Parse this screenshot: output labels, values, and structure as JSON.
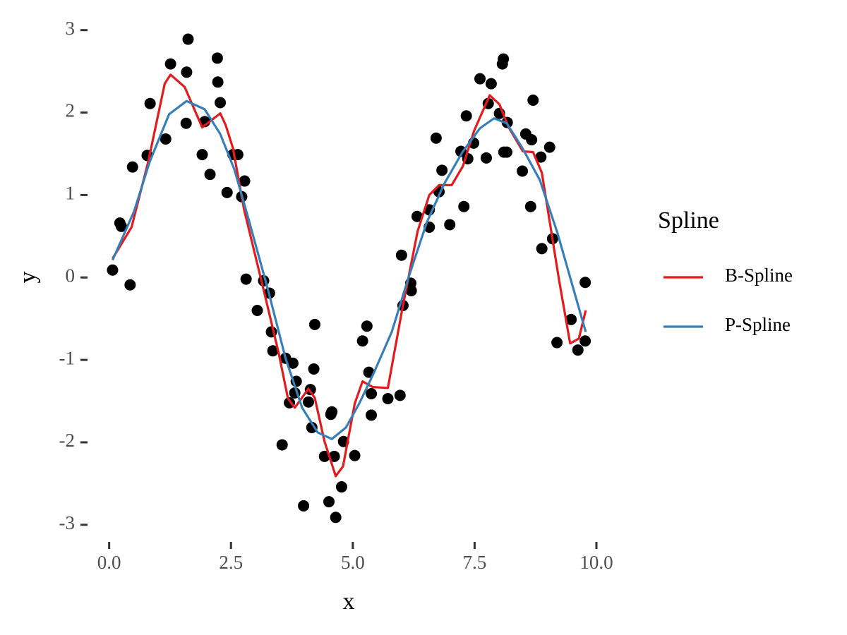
{
  "chart_data": {
    "type": "scatter",
    "x_label": "x",
    "y_label": "y",
    "xlim": [
      -0.415,
      10.255
    ],
    "ylim": [
      -3.19,
      3.16
    ],
    "xticks": [
      {
        "value": 0,
        "label": "0.0"
      },
      2.5,
      {
        "value": 5,
        "label": "5.0"
      },
      7.5,
      {
        "value": 10,
        "label": "10.0"
      }
    ],
    "yticks": [
      -3,
      -2,
      -1,
      0,
      1,
      2,
      3
    ],
    "grid": false,
    "legend_title": "Spline",
    "legend_position": "right",
    "points": {
      "color": "#000000",
      "x": [
        0.07,
        0.22,
        0.25,
        0.43,
        0.48,
        0.78,
        0.84,
        1.16,
        1.26,
        1.58,
        1.59,
        1.62,
        1.91,
        1.96,
        2.07,
        2.22,
        2.23,
        2.28,
        2.42,
        2.54,
        2.64,
        2.72,
        2.78,
        2.81,
        3.04,
        3.17,
        3.29,
        3.33,
        3.36,
        3.55,
        3.62,
        3.7,
        3.77,
        3.81,
        3.84,
        3.99,
        4.09,
        4.13,
        4.16,
        4.2,
        4.22,
        4.42,
        4.51,
        4.55,
        4.57,
        4.62,
        4.65,
        4.77,
        4.81,
        5.04,
        5.2,
        5.29,
        5.33,
        5.38,
        5.38,
        5.72,
        5.97,
        6.03,
        6.0,
        6.19,
        6.2,
        6.32,
        6.57,
        6.57,
        6.71,
        6.77,
        6.83,
        6.99,
        7.22,
        7.28,
        7.33,
        7.36,
        7.48,
        7.61,
        7.74,
        7.78,
        7.84,
        8.01,
        8.07,
        8.09,
        8.1,
        8.16,
        8.17,
        8.48,
        8.55,
        8.65,
        8.67,
        8.7,
        8.86,
        8.88,
        9.04,
        9.1,
        9.19,
        9.48,
        9.62,
        9.77,
        9.77
      ],
      "values": [
        0.09,
        0.66,
        0.62,
        -0.09,
        1.34,
        1.48,
        2.11,
        1.68,
        2.59,
        1.87,
        2.49,
        2.89,
        1.49,
        1.89,
        1.25,
        2.66,
        2.37,
        2.12,
        1.03,
        1.49,
        1.49,
        0.98,
        1.17,
        -0.02,
        -0.4,
        -0.04,
        -0.19,
        -0.66,
        -0.89,
        -2.03,
        -0.98,
        -1.52,
        -1.04,
        -1.4,
        -1.26,
        -2.77,
        -1.51,
        -1.36,
        -1.82,
        -1.11,
        -0.57,
        -2.17,
        -2.72,
        -1.66,
        -1.63,
        -2.17,
        -2.91,
        -2.54,
        -1.99,
        -2.16,
        -0.77,
        -0.59,
        -1.15,
        -1.41,
        -1.67,
        -1.47,
        -1.43,
        -0.34,
        0.27,
        -0.07,
        -0.16,
        0.74,
        0.82,
        0.61,
        1.69,
        1.04,
        1.3,
        0.64,
        1.53,
        0.86,
        1.96,
        1.44,
        1.63,
        2.41,
        1.45,
        2.11,
        2.35,
        1.99,
        2.59,
        2.65,
        1.52,
        1.52,
        1.88,
        1.29,
        1.74,
        0.86,
        1.67,
        2.15,
        1.46,
        0.35,
        1.58,
        0.47,
        -0.79,
        -0.51,
        -0.88,
        -0.06,
        -0.77
      ]
    },
    "series": [
      {
        "name": "B-Spline",
        "color": "#e41a1c",
        "x": [
          0.07,
          0.46,
          0.8,
          1.14,
          1.26,
          1.55,
          1.91,
          2.06,
          2.28,
          2.39,
          2.54,
          2.77,
          3.17,
          3.48,
          3.67,
          3.81,
          4.09,
          4.22,
          4.42,
          4.65,
          4.8,
          5.04,
          5.2,
          5.41,
          5.72,
          6.01,
          6.33,
          6.57,
          6.77,
          7.03,
          7.26,
          7.49,
          7.81,
          8.01,
          8.2,
          8.49,
          8.7,
          8.88,
          9.23,
          9.46,
          9.64,
          9.78
        ],
        "values": [
          0.23,
          0.61,
          1.4,
          2.35,
          2.46,
          2.31,
          1.82,
          1.89,
          1.99,
          1.85,
          1.57,
          0.82,
          -0.15,
          -0.92,
          -1.47,
          -1.58,
          -1.35,
          -1.46,
          -1.99,
          -2.41,
          -2.29,
          -1.53,
          -1.26,
          -1.33,
          -1.34,
          -0.4,
          0.56,
          1.0,
          1.12,
          1.12,
          1.35,
          1.78,
          2.21,
          2.1,
          1.82,
          1.53,
          1.52,
          1.27,
          -0.02,
          -0.8,
          -0.74,
          -0.4
        ]
      },
      {
        "name": "P-Spline",
        "color": "#377eb8",
        "x": [
          0.07,
          0.51,
          0.83,
          1.23,
          1.59,
          1.96,
          2.28,
          2.57,
          2.86,
          3.26,
          3.62,
          3.96,
          4.28,
          4.57,
          4.86,
          5.14,
          5.43,
          5.8,
          6.16,
          6.52,
          6.88,
          7.25,
          7.61,
          7.9,
          8.16,
          8.48,
          8.84,
          9.2,
          9.49,
          9.78
        ],
        "values": [
          0.21,
          0.8,
          1.4,
          1.98,
          2.14,
          2.04,
          1.74,
          1.31,
          0.71,
          -0.15,
          -0.98,
          -1.58,
          -1.88,
          -1.96,
          -1.82,
          -1.52,
          -1.16,
          -0.66,
          0.03,
          0.67,
          1.14,
          1.52,
          1.81,
          1.93,
          1.87,
          1.57,
          1.18,
          0.54,
          -0.06,
          -0.66
        ]
      }
    ]
  }
}
